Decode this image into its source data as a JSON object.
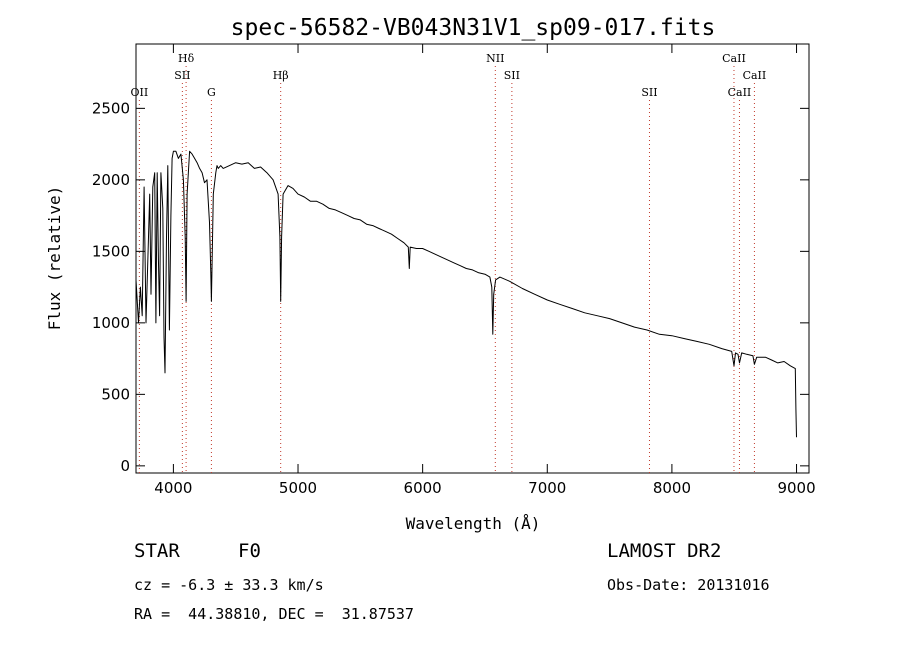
{
  "chart_data": {
    "type": "line",
    "title": "spec-56582-VB043N31V1_sp09-017.fits",
    "xlabel": "Wavelength (Å)",
    "ylabel": "Flux (relative)",
    "xlim": [
      3700,
      9100
    ],
    "ylim": [
      -50,
      2950
    ],
    "xticks": [
      4000,
      5000,
      6000,
      7000,
      8000,
      9000
    ],
    "yticks": [
      0,
      500,
      1000,
      1500,
      2000,
      2500
    ],
    "grid": false,
    "line_color": "#000000",
    "marker_color": "#c0392b",
    "spectral_lines": [
      {
        "label": "OII",
        "wavelength": 3727,
        "row": 3
      },
      {
        "label": "Hδ",
        "wavelength": 4102,
        "row": 1
      },
      {
        "label": "SII",
        "wavelength": 4072,
        "row": 2
      },
      {
        "label": "G",
        "wavelength": 4305,
        "row": 3
      },
      {
        "label": "Hβ",
        "wavelength": 4861,
        "row": 2
      },
      {
        "label": "NII",
        "wavelength": 6583,
        "row": 1
      },
      {
        "label": "SII",
        "wavelength": 6716,
        "row": 2
      },
      {
        "label": "SII",
        "wavelength": 7820,
        "row": 3
      },
      {
        "label": "CaII",
        "wavelength": 8498,
        "row": 1
      },
      {
        "label": "CaII",
        "wavelength": 8542,
        "row": 3
      },
      {
        "label": "CaII",
        "wavelength": 8662,
        "row": 2
      }
    ],
    "series": [
      {
        "x": [
          3700,
          3720,
          3735,
          3750,
          3765,
          3780,
          3800,
          3810,
          3820,
          3835,
          3850,
          3860,
          3870,
          3880,
          3889,
          3900,
          3915,
          3925,
          3933,
          3945,
          3955,
          3968,
          3980,
          3990,
          4000,
          4020,
          4040,
          4060,
          4080,
          4095,
          4102,
          4110,
          4130,
          4150,
          4170,
          4190,
          4210,
          4230,
          4250,
          4270,
          4290,
          4300,
          4305,
          4312,
          4320,
          4340,
          4350,
          4360,
          4380,
          4400,
          4450,
          4500,
          4550,
          4600,
          4650,
          4700,
          4750,
          4800,
          4840,
          4855,
          4861,
          4868,
          4880,
          4920,
          4960,
          5000,
          5050,
          5100,
          5150,
          5200,
          5250,
          5300,
          5350,
          5400,
          5450,
          5500,
          5550,
          5600,
          5650,
          5700,
          5750,
          5800,
          5850,
          5885,
          5893,
          5900,
          5950,
          6000,
          6050,
          6100,
          6150,
          6200,
          6250,
          6300,
          6350,
          6400,
          6450,
          6500,
          6540,
          6555,
          6563,
          6570,
          6585,
          6620,
          6700,
          6800,
          6900,
          7000,
          7100,
          7200,
          7300,
          7400,
          7500,
          7600,
          7700,
          7800,
          7900,
          8000,
          8100,
          8200,
          8300,
          8400,
          8480,
          8498,
          8510,
          8530,
          8542,
          8560,
          8600,
          8650,
          8662,
          8680,
          8750,
          8800,
          8850,
          8900,
          8950,
          8990,
          8995,
          9000
        ],
        "y": [
          1300,
          1000,
          1250,
          1050,
          1950,
          1000,
          1600,
          1900,
          1200,
          1950,
          2050,
          1000,
          2050,
          1450,
          1050,
          2050,
          1800,
          900,
          650,
          1600,
          2100,
          950,
          1750,
          2150,
          2200,
          2200,
          2150,
          2180,
          2000,
          1600,
          1150,
          1900,
          2200,
          2180,
          2150,
          2120,
          2080,
          2050,
          1980,
          2000,
          1700,
          1350,
          1150,
          1500,
          1900,
          2050,
          2100,
          2080,
          2100,
          2080,
          2100,
          2120,
          2110,
          2120,
          2080,
          2090,
          2050,
          2000,
          1900,
          1600,
          1150,
          1600,
          1900,
          1960,
          1940,
          1900,
          1880,
          1850,
          1850,
          1830,
          1800,
          1790,
          1770,
          1750,
          1730,
          1720,
          1690,
          1680,
          1660,
          1640,
          1620,
          1590,
          1560,
          1530,
          1380,
          1530,
          1520,
          1520,
          1500,
          1480,
          1460,
          1440,
          1420,
          1400,
          1380,
          1370,
          1350,
          1340,
          1320,
          1250,
          920,
          1200,
          1300,
          1320,
          1290,
          1240,
          1200,
          1160,
          1130,
          1100,
          1070,
          1050,
          1030,
          1000,
          970,
          950,
          920,
          910,
          890,
          870,
          850,
          820,
          800,
          700,
          790,
          780,
          720,
          790,
          780,
          770,
          710,
          760,
          760,
          740,
          720,
          730,
          700,
          680,
          400,
          200
        ]
      }
    ]
  },
  "info": {
    "object_type": "STAR",
    "subclass": "F0",
    "survey": "LAMOST DR2",
    "cz": "cz = -6.3 ± 33.3 km/s",
    "obs_date": "Obs-Date: 20131016",
    "coords": "RA =  44.38810, DEC =  31.87537"
  }
}
